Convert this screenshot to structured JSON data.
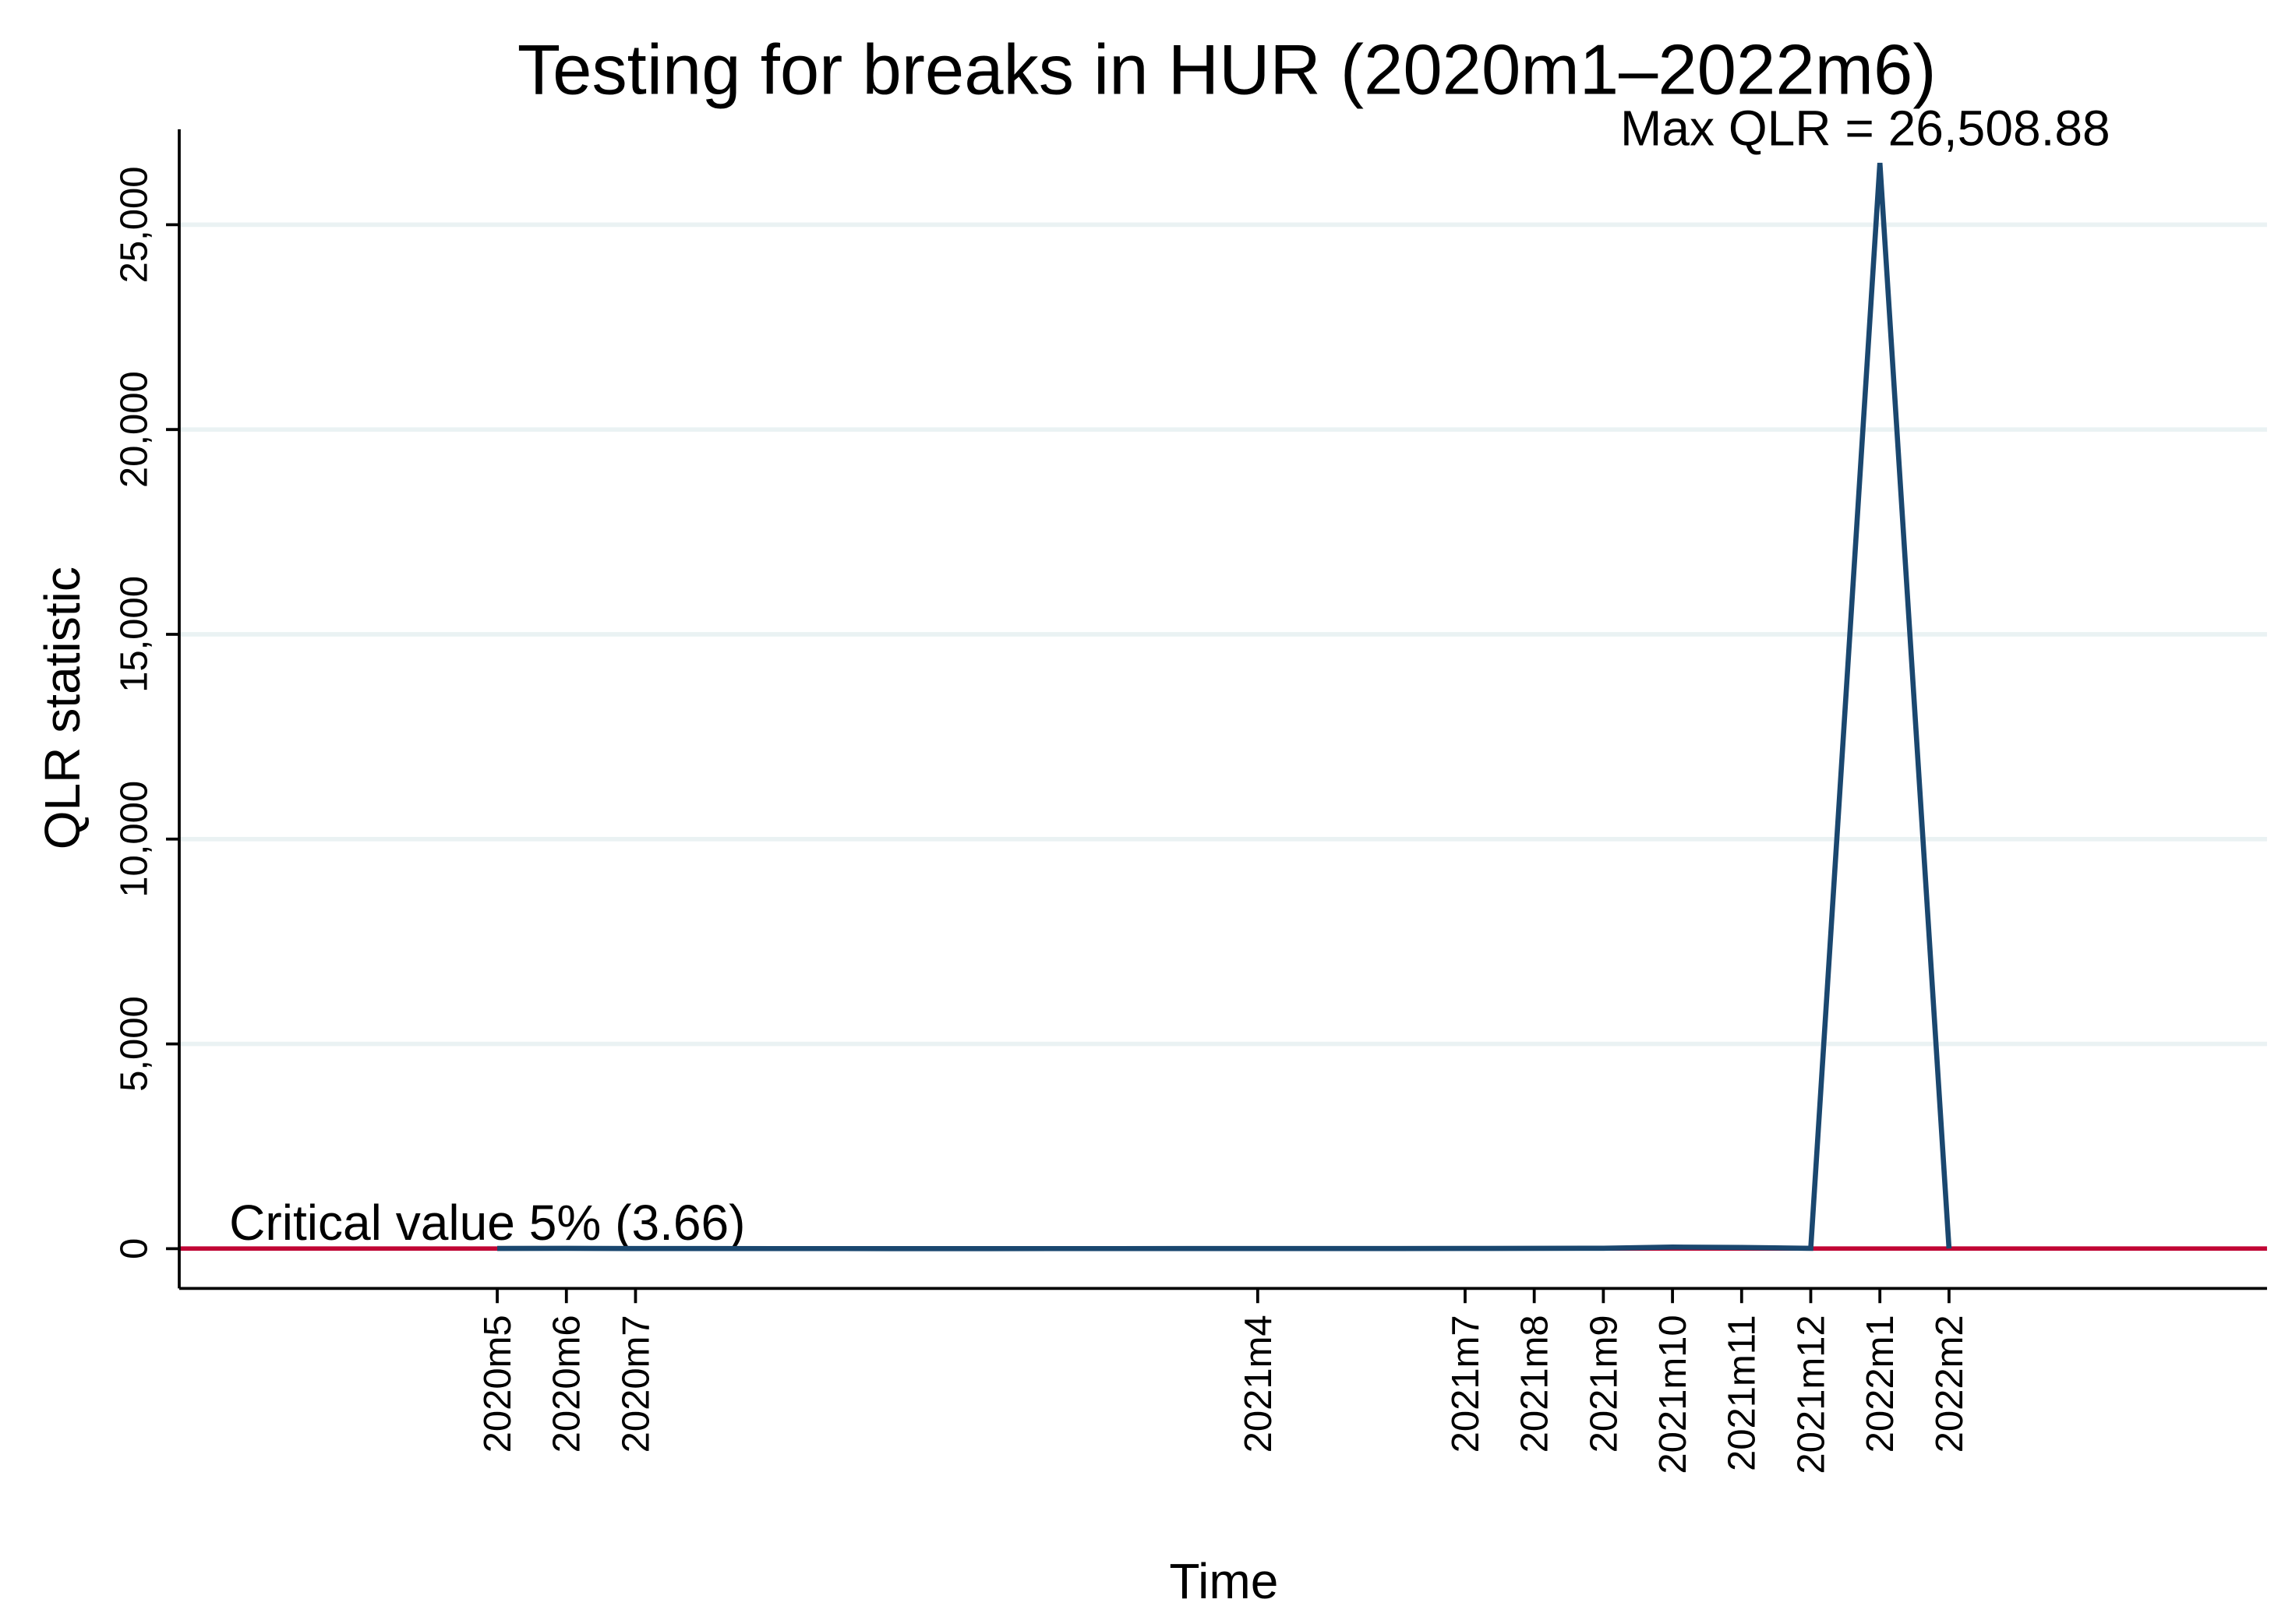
{
  "chart_data": {
    "type": "line",
    "title": "Testing for breaks in HUR (2020m1–2022m6)",
    "x_label": "Time",
    "y_label": "QLR statistic",
    "categories": [
      null,
      null,
      null,
      null,
      "2020m5",
      "2020m6",
      "2020m7",
      null,
      null,
      null,
      null,
      null,
      null,
      null,
      null,
      "2021m4",
      null,
      null,
      "2021m7",
      "2021m8",
      "2021m9",
      "2021m10",
      "2021m11",
      "2021m12",
      "2022m1",
      "2022m2",
      null,
      null,
      null,
      null
    ],
    "series": [
      {
        "name": "QLR statistic",
        "color": "#1a476f",
        "values": [
          null,
          null,
          null,
          null,
          6,
          8,
          5,
          4,
          3,
          3,
          2,
          2,
          3,
          3,
          4,
          5,
          4,
          4,
          6,
          8,
          12,
          40,
          30,
          10,
          26508.88,
          5,
          null,
          null,
          null,
          null
        ]
      }
    ],
    "annotation": "Max QLR = 26,508.88",
    "reference_line": {
      "value": 3.66,
      "label": "Critical value 5% (3.66)",
      "color": "#c10534"
    },
    "ylim": [
      -970,
      27330
    ],
    "yticks": [
      0,
      {
        "value": 5000,
        "label": "5,000"
      },
      {
        "value": 10000,
        "label": "10,000"
      },
      {
        "value": 15000,
        "label": "15,000"
      },
      {
        "value": 20000,
        "label": "20,000"
      },
      {
        "value": 25000,
        "label": "25,000"
      }
    ],
    "grid": true,
    "grid_color": "#eaf2f3"
  }
}
